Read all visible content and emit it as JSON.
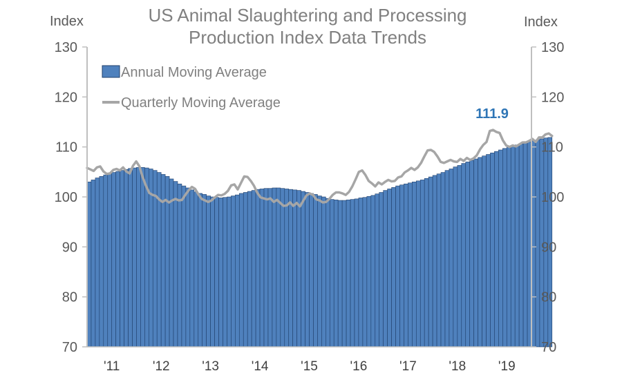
{
  "chart_data": {
    "type": "bar+line",
    "title_lines": [
      "US Animal Slaughtering and Processing",
      "Production Index Data Trends"
    ],
    "y_axis_label_left": "Index",
    "y_axis_label_right": "Index",
    "ylim": [
      70,
      130
    ],
    "yticks": [
      70,
      80,
      90,
      100,
      110,
      120,
      130
    ],
    "xlim": [
      2010.5,
      2019.5
    ],
    "xticks": [
      {
        "value": 2011,
        "label": "'11"
      },
      {
        "value": 2012,
        "label": "'12"
      },
      {
        "value": 2013,
        "label": "'13"
      },
      {
        "value": 2014,
        "label": "'14"
      },
      {
        "value": 2015,
        "label": "'15"
      },
      {
        "value": 2016,
        "label": "'16"
      },
      {
        "value": 2017,
        "label": "'17"
      },
      {
        "value": 2018,
        "label": "'18"
      },
      {
        "value": 2019,
        "label": "'19"
      }
    ],
    "x_start": 2010.5,
    "x_step_months": 1,
    "grid": false,
    "legend_position": "top-left",
    "series": [
      {
        "name": "Annual Moving Average",
        "kind": "bar",
        "color": "#4f81bd",
        "values": [
          103.0,
          103.4,
          103.8,
          104.1,
          104.4,
          104.7,
          104.9,
          105.1,
          105.3,
          105.5,
          105.7,
          105.8,
          105.9,
          105.9,
          105.8,
          105.6,
          105.3,
          104.9,
          104.5,
          104.1,
          103.6,
          103.1,
          102.6,
          102.2,
          101.8,
          101.4,
          101.0,
          100.7,
          100.5,
          100.2,
          100.0,
          99.9,
          99.8,
          99.9,
          100.0,
          100.2,
          100.4,
          100.7,
          100.9,
          101.1,
          101.3,
          101.5,
          101.6,
          101.7,
          101.7,
          101.8,
          101.8,
          101.7,
          101.6,
          101.5,
          101.4,
          101.3,
          101.1,
          100.9,
          100.7,
          100.5,
          100.2,
          100.0,
          99.7,
          99.5,
          99.4,
          99.3,
          99.3,
          99.4,
          99.5,
          99.6,
          99.8,
          99.9,
          100.1,
          100.3,
          100.6,
          100.9,
          101.3,
          101.6,
          101.9,
          102.2,
          102.4,
          102.6,
          102.8,
          103.0,
          103.2,
          103.4,
          103.7,
          104.0,
          104.3,
          104.6,
          104.9,
          105.3,
          105.6,
          106.0,
          106.3,
          106.7,
          107.0,
          107.3,
          107.6,
          107.9,
          108.2,
          108.5,
          108.8,
          109.1,
          109.4,
          109.7,
          110.0,
          110.2,
          110.4,
          110.6,
          110.8,
          111.0,
          111.2,
          111.4,
          111.6,
          111.8,
          111.9
        ]
      },
      {
        "name": "Quarterly Moving Average",
        "kind": "line",
        "color": "#a6a6a6",
        "values": [
          105.8,
          105.5,
          105.2,
          105.9,
          106.1,
          105.1,
          104.6,
          104.7,
          105.4,
          105.6,
          105.3,
          105.9,
          105.1,
          104.7,
          106.2,
          107.1,
          106.1,
          103.9,
          102.2,
          100.8,
          100.4,
          100.2,
          99.5,
          99.0,
          99.4,
          98.9,
          99.3,
          99.6,
          99.3,
          99.4,
          100.4,
          101.3,
          102.0,
          101.6,
          100.5,
          99.6,
          99.3,
          99.0,
          99.3,
          99.9,
          100.4,
          100.3,
          100.6,
          101.2,
          102.3,
          102.5,
          101.5,
          102.8,
          104.1,
          104.0,
          103.2,
          102.2,
          100.8,
          99.9,
          99.7,
          99.5,
          99.7,
          99.0,
          99.4,
          98.8,
          98.2,
          98.3,
          98.9,
          98.2,
          98.8,
          98.1,
          99.2,
          100.3,
          100.7,
          100.4,
          99.5,
          99.3,
          98.9,
          99.0,
          99.6,
          100.4,
          100.9,
          100.9,
          100.7,
          100.4,
          101.0,
          102.1,
          103.5,
          105.0,
          105.3,
          104.4,
          103.2,
          102.7,
          102.1,
          102.9,
          102.5,
          103.0,
          103.4,
          103.1,
          103.2,
          103.9,
          104.1,
          104.9,
          105.3,
          105.8,
          105.4,
          105.9,
          106.8,
          108.1,
          109.3,
          109.4,
          109.0,
          108.1,
          107.0,
          106.8,
          107.1,
          107.4,
          107.1,
          107.0,
          107.6,
          107.2,
          107.8,
          107.4,
          107.7,
          108.3,
          109.5,
          110.4,
          111.0,
          113.2,
          113.4,
          113.0,
          112.8,
          111.3,
          110.3,
          110.0,
          110.3,
          110.1,
          110.5,
          110.9,
          110.9,
          111.2,
          111.6,
          111.0,
          111.9,
          111.9,
          112.5,
          112.7,
          112.2
        ]
      }
    ],
    "annotation": {
      "text": "111.9"
    }
  }
}
